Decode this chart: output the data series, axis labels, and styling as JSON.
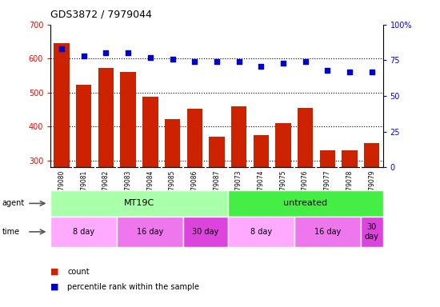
{
  "title": "GDS3872 / 7979044",
  "categories": [
    "GSM579080",
    "GSM579081",
    "GSM579082",
    "GSM579083",
    "GSM579084",
    "GSM579085",
    "GSM579086",
    "GSM579087",
    "GSM579073",
    "GSM579074",
    "GSM579075",
    "GSM579076",
    "GSM579077",
    "GSM579078",
    "GSM579079"
  ],
  "bar_values": [
    645,
    522,
    572,
    560,
    488,
    421,
    452,
    369,
    460,
    374,
    410,
    455,
    329,
    330,
    352
  ],
  "percentile_values": [
    83,
    78,
    80,
    80,
    77,
    76,
    74,
    74,
    74,
    71,
    73,
    74,
    68,
    67,
    67
  ],
  "bar_color": "#cc2200",
  "dot_color": "#0000cc",
  "ylim_left": [
    280,
    700
  ],
  "ylim_right": [
    0,
    100
  ],
  "yticks_left": [
    300,
    400,
    500,
    600,
    700
  ],
  "yticks_right": [
    0,
    25,
    50,
    75,
    100
  ],
  "ytick_labels_right": [
    "0",
    "25",
    "50",
    "75",
    "100%"
  ],
  "grid_values": [
    300,
    400,
    500,
    600
  ],
  "agent_groups": [
    {
      "label": "MT19C",
      "start": 0,
      "end": 8,
      "color": "#aaffaa"
    },
    {
      "label": "untreated",
      "start": 8,
      "end": 15,
      "color": "#44ee44"
    }
  ],
  "time_groups": [
    {
      "label": "8 day",
      "start": 0,
      "end": 3,
      "color": "#ffaaff"
    },
    {
      "label": "16 day",
      "start": 3,
      "end": 6,
      "color": "#ee77ee"
    },
    {
      "label": "30 day",
      "start": 6,
      "end": 8,
      "color": "#dd44dd"
    },
    {
      "label": "8 day",
      "start": 8,
      "end": 11,
      "color": "#ffaaff"
    },
    {
      "label": "16 day",
      "start": 11,
      "end": 14,
      "color": "#ee77ee"
    },
    {
      "label": "30\nday",
      "start": 14,
      "end": 15,
      "color": "#dd44dd"
    }
  ],
  "legend_items": [
    {
      "label": "count",
      "color": "#cc2200"
    },
    {
      "label": "percentile rank within the sample",
      "color": "#0000cc"
    }
  ],
  "background_color": "#ffffff",
  "xtick_bg": "#cccccc",
  "bar_width": 0.7
}
